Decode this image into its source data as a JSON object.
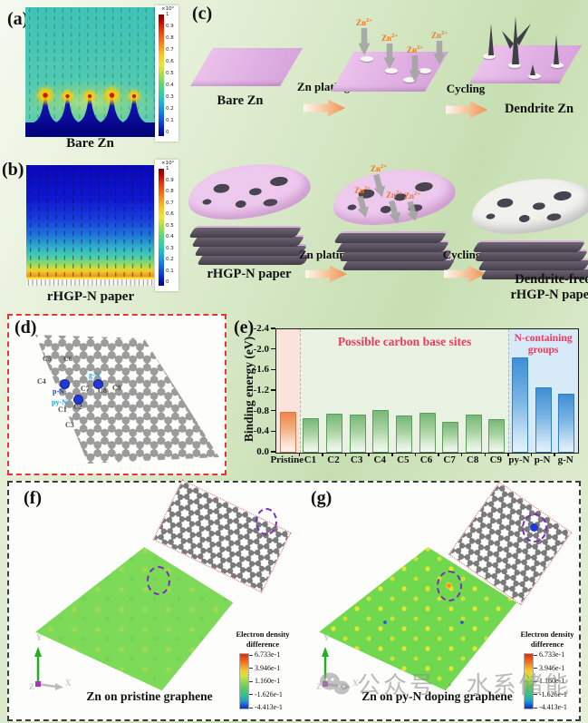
{
  "panels": {
    "a": {
      "label": "(a)",
      "caption": "Bare Zn",
      "colorbar": {
        "exp": "×10⁰",
        "ticks": [
          "1",
          "0.9",
          "0.8",
          "0.7",
          "0.6",
          "0.5",
          "0.4",
          "0.3",
          "0.2",
          "0.1",
          "0"
        ]
      }
    },
    "b": {
      "label": "(b)",
      "caption": "rHGP-N paper",
      "colorbar": {
        "exp": "×10⁴",
        "ticks": [
          "1",
          "0.9",
          "0.8",
          "0.7",
          "0.6",
          "0.5",
          "0.4",
          "0.3",
          "0.2",
          "0.1",
          "0"
        ]
      }
    },
    "c": {
      "label": "(c)",
      "row1": {
        "caption_left": "Bare Zn",
        "arrow1": "Zn plating",
        "arrow2": "Cycling",
        "caption_right": "Dendrite Zn"
      },
      "row2": {
        "caption_left": "rHGP-N paper",
        "arrow1": "Zn plating",
        "arrow2": "Cycling",
        "caption_right_line1": "Dendrite-free",
        "caption_right_line2": "rHGP-N paper"
      },
      "ion": {
        "base": "Zn",
        "charge": "2+"
      }
    },
    "d": {
      "label": "(d)",
      "carbon_sites": [
        "C1",
        "C2",
        "C3",
        "C4",
        "C5",
        "C6",
        "C7",
        "C8",
        "C9"
      ],
      "nitrogen_sites": [
        "py-N",
        "p-N",
        "g-N"
      ]
    },
    "e": {
      "label": "(e)"
    },
    "f": {
      "label": "(f)",
      "caption": "Zn on pristine graphene",
      "axes": {
        "x": "X",
        "y": "Y",
        "z": "Z"
      },
      "colorbar": {
        "title_line1": "Electron density",
        "title_line2": "difference",
        "ticks": [
          "6.733e-1",
          "3.946e-1",
          "1.160e-1",
          "-1.626e-1",
          "-4.413e-1"
        ]
      }
    },
    "g": {
      "label": "(g)",
      "caption": "Zn on py-N doping graphene",
      "axes": {
        "x": "X",
        "y": "Y",
        "z": "Z"
      },
      "colorbar": {
        "title_line1": "Electron density",
        "title_line2": "difference",
        "ticks": [
          "6.733e-1",
          "3.946e-1",
          "1.160e-1",
          "-1.626e-1",
          "-4.413e-1"
        ]
      }
    }
  },
  "chart_data": {
    "type": "bar",
    "title": "",
    "ylabel": "Binding energy (eV)",
    "xlabel": "",
    "categories": [
      "Pristine",
      "C1",
      "C2",
      "C3",
      "C4",
      "C5",
      "C6",
      "C7",
      "C8",
      "C9",
      "py-N",
      "p-N",
      "g-N"
    ],
    "values": [
      -0.76,
      -0.64,
      -0.72,
      -0.71,
      -0.8,
      -0.68,
      -0.74,
      -0.56,
      -0.71,
      -0.61,
      -1.82,
      -1.23,
      -1.11
    ],
    "groups": [
      "pristine",
      "carbon",
      "carbon",
      "carbon",
      "carbon",
      "carbon",
      "carbon",
      "carbon",
      "carbon",
      "carbon",
      "nitrogen",
      "nitrogen",
      "nitrogen"
    ],
    "yticks": [
      "-2.4",
      "-2.0",
      "-1.6",
      "-1.2",
      "-0.8",
      "-0.4",
      "0.0"
    ],
    "ylim": [
      0,
      -2.4
    ],
    "grid": false,
    "legend_position": "none",
    "annotations": {
      "carbon": "Possible carbon base sites",
      "nitrogen": "N-containing groups"
    }
  },
  "watermark": {
    "text": "公众号 · 水系储能"
  }
}
